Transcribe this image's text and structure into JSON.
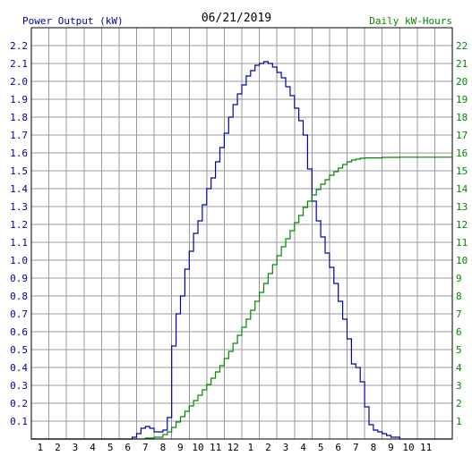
{
  "chart_data": {
    "type": "line",
    "title": "06/21/2019",
    "ylabel_left": "Power Output (kW)",
    "ylabel_right": "Daily kW-Hours",
    "x_hours": [
      0,
      1,
      2,
      3,
      4,
      5,
      6,
      7,
      8,
      9,
      10,
      11,
      12,
      13,
      14,
      15,
      16,
      17,
      18,
      19,
      20,
      21,
      22,
      23,
      24
    ],
    "x_tick_labels": [
      "1",
      "2",
      "3",
      "4",
      "5",
      "6",
      "7",
      "8",
      "9",
      "10",
      "11",
      "12",
      "1",
      "2",
      "3",
      "4",
      "5",
      "6",
      "7",
      "8",
      "9",
      "10",
      "11"
    ],
    "y_left_range": [
      0,
      2.3
    ],
    "y_left_ticks": [
      "0.1",
      "0.2",
      "0.3",
      "0.4",
      "0.5",
      "0.6",
      "0.7",
      "0.8",
      "0.9",
      "1.0",
      "1.1",
      "1.2",
      "1.3",
      "1.4",
      "1.5",
      "1.6",
      "1.7",
      "1.8",
      "1.9",
      "2.0",
      "2.1",
      "2.2"
    ],
    "y_right_range": [
      0,
      23
    ],
    "y_right_ticks": [
      "1",
      "2",
      "3",
      "4",
      "5",
      "6",
      "7",
      "8",
      "9",
      "10",
      "11",
      "12",
      "13",
      "14",
      "15",
      "16",
      "17",
      "18",
      "19",
      "20",
      "21",
      "22"
    ],
    "grid": true,
    "series": [
      {
        "name": "Power Output (kW)",
        "color": "#0000aa",
        "axis": "left",
        "points": [
          [
            0,
            0
          ],
          [
            5.5,
            0
          ],
          [
            5.75,
            0.01
          ],
          [
            6.0,
            0.03
          ],
          [
            6.25,
            0.06
          ],
          [
            6.5,
            0.07
          ],
          [
            6.75,
            0.06
          ],
          [
            7.0,
            0.04
          ],
          [
            7.25,
            0.04
          ],
          [
            7.5,
            0.05
          ],
          [
            7.75,
            0.12
          ],
          [
            8.0,
            0.52
          ],
          [
            8.25,
            0.7
          ],
          [
            8.5,
            0.8
          ],
          [
            8.75,
            0.95
          ],
          [
            9.0,
            1.05
          ],
          [
            9.25,
            1.15
          ],
          [
            9.5,
            1.22
          ],
          [
            9.75,
            1.31
          ],
          [
            10.0,
            1.4
          ],
          [
            10.25,
            1.46
          ],
          [
            10.5,
            1.55
          ],
          [
            10.75,
            1.63
          ],
          [
            11.0,
            1.71
          ],
          [
            11.25,
            1.8
          ],
          [
            11.5,
            1.87
          ],
          [
            11.75,
            1.93
          ],
          [
            12.0,
            1.98
          ],
          [
            12.25,
            2.03
          ],
          [
            12.5,
            2.06
          ],
          [
            12.75,
            2.09
          ],
          [
            13.0,
            2.1
          ],
          [
            13.25,
            2.11
          ],
          [
            13.5,
            2.1
          ],
          [
            13.75,
            2.08
          ],
          [
            14.0,
            2.05
          ],
          [
            14.25,
            2.02
          ],
          [
            14.5,
            1.97
          ],
          [
            14.75,
            1.92
          ],
          [
            15.0,
            1.85
          ],
          [
            15.25,
            1.78
          ],
          [
            15.5,
            1.7
          ],
          [
            15.75,
            1.51
          ],
          [
            16.0,
            1.33
          ],
          [
            16.25,
            1.22
          ],
          [
            16.5,
            1.13
          ],
          [
            16.75,
            1.04
          ],
          [
            17.0,
            0.96
          ],
          [
            17.25,
            0.87
          ],
          [
            17.5,
            0.77
          ],
          [
            17.75,
            0.67
          ],
          [
            18.0,
            0.56
          ],
          [
            18.25,
            0.42
          ],
          [
            18.5,
            0.4
          ],
          [
            18.75,
            0.32
          ],
          [
            19.0,
            0.18
          ],
          [
            19.25,
            0.08
          ],
          [
            19.5,
            0.05
          ],
          [
            19.75,
            0.04
          ],
          [
            20.0,
            0.03
          ],
          [
            20.25,
            0.02
          ],
          [
            20.5,
            0.01
          ],
          [
            21.0,
            0.0
          ],
          [
            24.0,
            0.0
          ]
        ]
      },
      {
        "name": "Daily kW-Hours",
        "color": "#008800",
        "axis": "right",
        "points": [
          [
            0,
            0
          ],
          [
            6.0,
            0
          ],
          [
            6.5,
            0.05
          ],
          [
            7.0,
            0.1
          ],
          [
            7.5,
            0.25
          ],
          [
            7.75,
            0.4
          ],
          [
            8.0,
            0.65
          ],
          [
            8.25,
            0.95
          ],
          [
            8.5,
            1.25
          ],
          [
            8.75,
            1.55
          ],
          [
            9.0,
            1.85
          ],
          [
            9.25,
            2.15
          ],
          [
            9.5,
            2.45
          ],
          [
            9.75,
            2.75
          ],
          [
            10.0,
            3.05
          ],
          [
            10.25,
            3.4
          ],
          [
            10.5,
            3.75
          ],
          [
            10.75,
            4.1
          ],
          [
            11.0,
            4.5
          ],
          [
            11.25,
            4.9
          ],
          [
            11.5,
            5.35
          ],
          [
            11.75,
            5.8
          ],
          [
            12.0,
            6.25
          ],
          [
            12.25,
            6.7
          ],
          [
            12.5,
            7.2
          ],
          [
            12.75,
            7.7
          ],
          [
            13.0,
            8.2
          ],
          [
            13.25,
            8.7
          ],
          [
            13.5,
            9.25
          ],
          [
            13.75,
            9.75
          ],
          [
            14.0,
            10.25
          ],
          [
            14.25,
            10.75
          ],
          [
            14.5,
            11.2
          ],
          [
            14.75,
            11.65
          ],
          [
            15.0,
            12.1
          ],
          [
            15.25,
            12.5
          ],
          [
            15.5,
            12.95
          ],
          [
            15.75,
            13.3
          ],
          [
            16.0,
            13.65
          ],
          [
            16.25,
            13.95
          ],
          [
            16.5,
            14.25
          ],
          [
            16.75,
            14.5
          ],
          [
            17.0,
            14.75
          ],
          [
            17.25,
            14.95
          ],
          [
            17.5,
            15.15
          ],
          [
            17.75,
            15.35
          ],
          [
            18.0,
            15.5
          ],
          [
            18.25,
            15.6
          ],
          [
            18.5,
            15.65
          ],
          [
            18.75,
            15.7
          ],
          [
            19.0,
            15.72
          ],
          [
            20.0,
            15.75
          ],
          [
            21.0,
            15.76
          ],
          [
            24.0,
            15.76
          ]
        ]
      }
    ]
  }
}
